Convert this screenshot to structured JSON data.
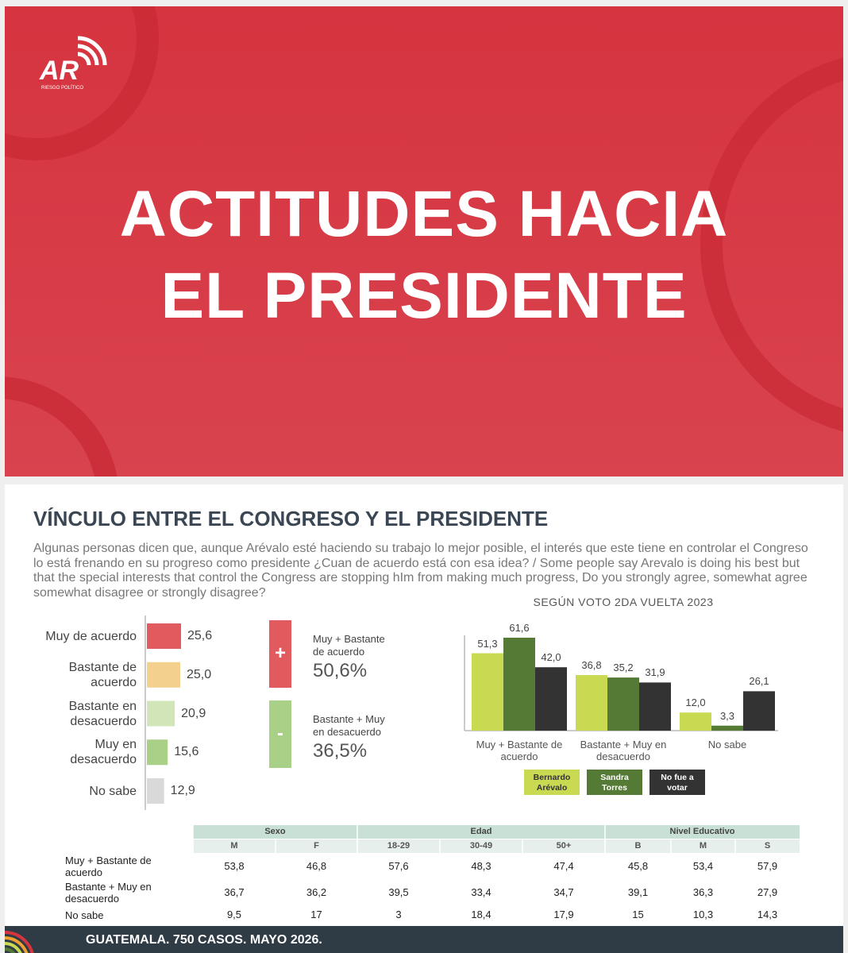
{
  "header": {
    "logo": "AR",
    "logo_subtitle": "RIESGO POLÍTICO",
    "title_lines": [
      "ACTITUDES HACIA",
      "EL PRESIDENTE"
    ]
  },
  "section": {
    "title": "VÍNCULO ENTRE EL CONGRESO Y EL PRESIDENTE",
    "question": "Algunas personas dicen que, aunque Arévalo esté haciendo su trabajo lo mejor posible, el interés que este tiene en controlar el Congreso lo está frenando en su progreso como presidente ¿Cuan de acuerdo está con esa idea? / Some people say Arevalo is doing his best but that the special interests that control the Congress are stopping hIm from making much progress,  Do you strongly agree, somewhat agree somewhat disagree or strongly disagree?"
  },
  "chart_data": [
    {
      "type": "hbar",
      "categories": [
        "Muy de acuerdo",
        "Bastante de acuerdo",
        "Bastante en desacuerdo",
        "Muy en desacuerdo",
        "No sabe"
      ],
      "values": [
        25.6,
        25.0,
        20.9,
        15.6,
        12.9
      ],
      "value_labels": [
        "25,6",
        "25,0",
        "20,9",
        "15,6",
        "12,9"
      ],
      "colors": [
        "#e05a5e",
        "#f4d08f",
        "#d2e5b8",
        "#a9d087",
        "#d9d9d9"
      ]
    },
    {
      "type": "bar",
      "title": "SEGÚN VOTO 2DA VUELTA 2023",
      "categories": [
        "Muy + Bastante de acuerdo",
        "Bastante + Muy en desacuerdo",
        "No sabe"
      ],
      "series": [
        {
          "name": "Bernardo Arévalo",
          "color": "#c9d952",
          "values": [
            51.3,
            36.8,
            12.0
          ],
          "value_labels": [
            "51,3",
            "36,8",
            "12,0"
          ]
        },
        {
          "name": "Sandra Torres",
          "color": "#557a35",
          "values": [
            61.6,
            35.2,
            3.3
          ],
          "value_labels": [
            "61,6",
            "35,2",
            "3,3"
          ]
        },
        {
          "name": "No fue a votar",
          "color": "#333333",
          "values": [
            42.0,
            31.9,
            26.1
          ],
          "value_labels": [
            "42,0",
            "31,9",
            "26,1"
          ]
        }
      ]
    }
  ],
  "summary": [
    {
      "sign": "+",
      "label": "Muy + Bastante de acuerdo",
      "value": "50,6%",
      "color": "#e05a5e"
    },
    {
      "sign": "-",
      "label": "Bastante + Muy en desacuerdo",
      "value": "36,5%",
      "color": "#a9d087"
    }
  ],
  "table": {
    "groups": [
      {
        "label": "Sexo",
        "columns": [
          "M",
          "F"
        ]
      },
      {
        "label": "Edad",
        "columns": [
          "18-29",
          "30-49",
          "50+"
        ]
      },
      {
        "label": "Nivel Educativo",
        "columns": [
          "B",
          "M",
          "S"
        ]
      }
    ],
    "rows": [
      {
        "label": "Muy + Bastante de acuerdo",
        "cells": [
          "53,8",
          "46,8",
          "57,6",
          "48,3",
          "47,4",
          "45,8",
          "53,4",
          "57,9"
        ]
      },
      {
        "label": "Bastante + Muy en desacuerdo",
        "cells": [
          "36,7",
          "36,2",
          "39,5",
          "33,4",
          "34,7",
          "39,1",
          "36,3",
          "27,9"
        ]
      },
      {
        "label": "No sabe",
        "cells": [
          "9,5",
          "17",
          "3",
          "18,4",
          "17,9",
          "15",
          "10,3",
          "14,3"
        ]
      }
    ]
  },
  "footer": "GUATEMALA. 750 CASOS. MAYO 2026."
}
